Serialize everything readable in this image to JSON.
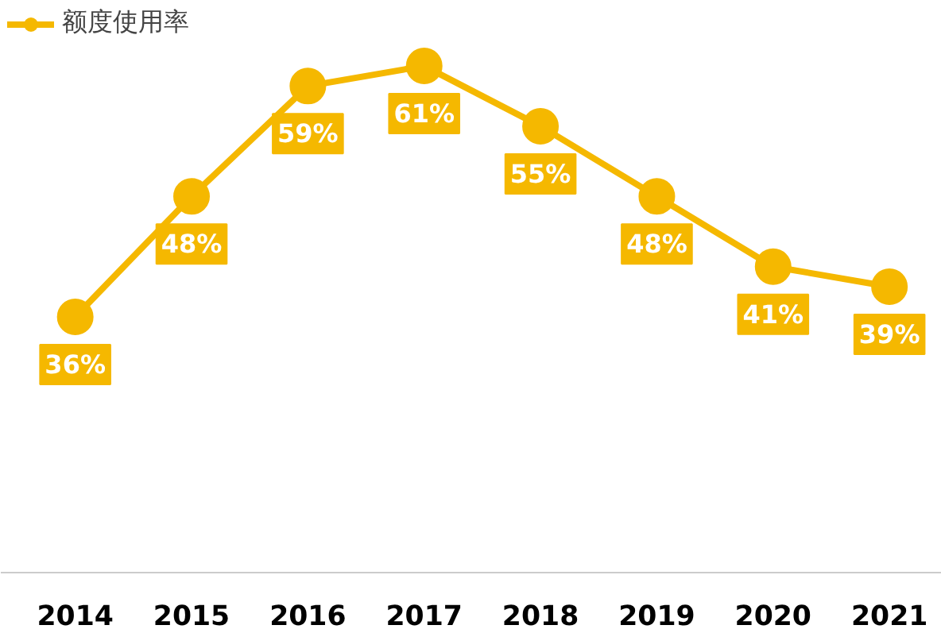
{
  "chart_data": {
    "type": "line",
    "categories": [
      "2014",
      "2015",
      "2016",
      "2017",
      "2018",
      "2019",
      "2020",
      "2021"
    ],
    "series": [
      {
        "name": "额度使用率",
        "color": "#f5b800",
        "values": [
          36,
          48,
          59,
          61,
          55,
          48,
          41,
          39
        ],
        "value_labels": [
          "36%",
          "48%",
          "59%",
          "61%",
          "55%",
          "48%",
          "41%",
          "39%"
        ]
      }
    ],
    "marker": "circle",
    "line_style": "solid",
    "legend": "top left",
    "grid": false,
    "tick_labels": "x"
  }
}
